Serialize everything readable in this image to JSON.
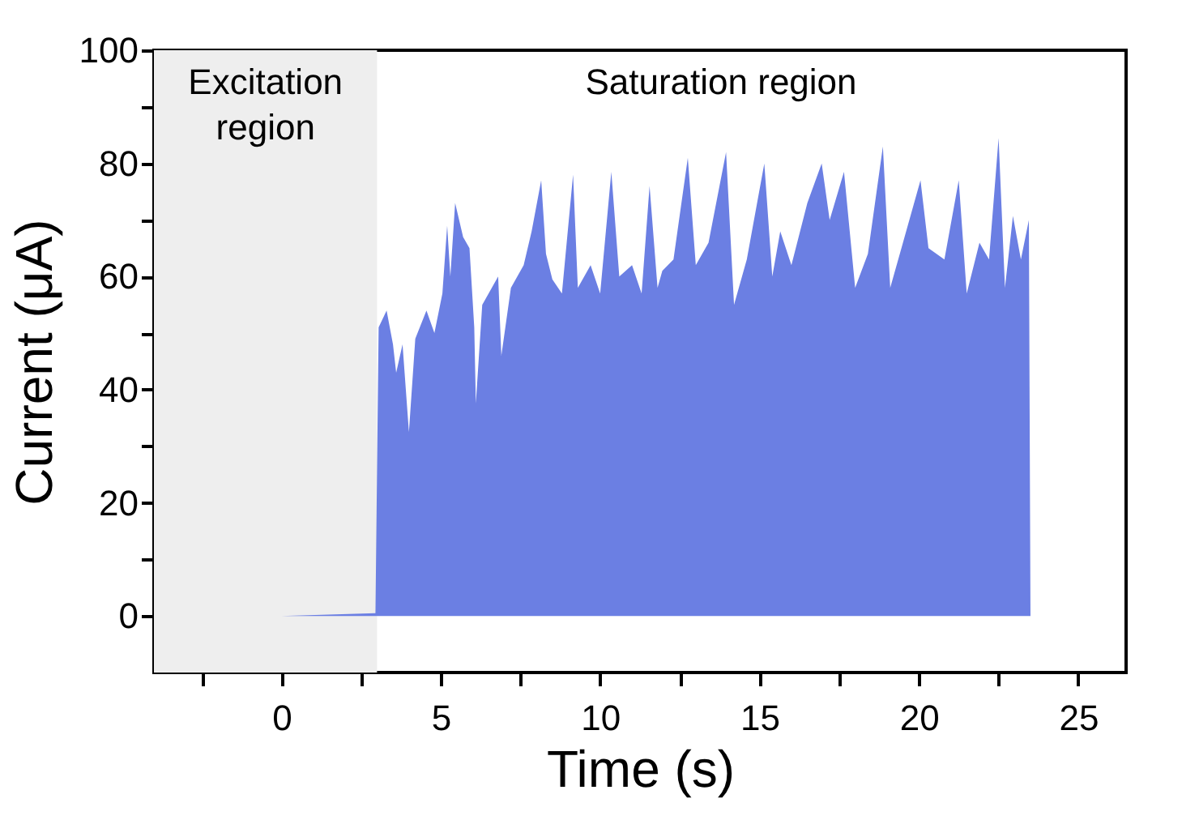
{
  "chart_data": {
    "type": "area",
    "xlabel": "Time (s)",
    "ylabel": "Current (μA)",
    "x": [
      0,
      2.95,
      3.05,
      3.3,
      3.5,
      3.6,
      3.8,
      4.0,
      4.2,
      4.55,
      4.8,
      5.05,
      5.2,
      5.3,
      5.45,
      5.7,
      5.9,
      6.05,
      6.1,
      6.3,
      6.8,
      6.9,
      7.2,
      7.6,
      7.85,
      8.15,
      8.3,
      8.5,
      8.8,
      9.15,
      9.3,
      9.7,
      10.0,
      10.35,
      10.6,
      11.0,
      11.3,
      11.55,
      11.8,
      11.95,
      12.3,
      12.75,
      13.0,
      13.4,
      13.95,
      14.2,
      14.6,
      15.15,
      15.4,
      15.65,
      16.0,
      16.5,
      16.95,
      17.2,
      17.65,
      18.0,
      18.4,
      18.87,
      19.1,
      19.5,
      20.05,
      20.3,
      20.8,
      21.25,
      21.5,
      21.9,
      22.2,
      22.5,
      22.7,
      22.95,
      23.2,
      23.45,
      23.5
    ],
    "series": [
      {
        "color": "#6b7fe3",
        "values": [
          0,
          0.5,
          51,
          54,
          48,
          43,
          48,
          32.5,
          49,
          54,
          50,
          57,
          69,
          60,
          73,
          67,
          65,
          51,
          37.6,
          55,
          60,
          46,
          58,
          62,
          68,
          77,
          64,
          59.5,
          57,
          78,
          58,
          62,
          57,
          78.5,
          60,
          62,
          57,
          76,
          58,
          61,
          63,
          81,
          62,
          66,
          82,
          55,
          63,
          80,
          60,
          68,
          62,
          73,
          80,
          70,
          78.5,
          58,
          64,
          83,
          58,
          66,
          77,
          65,
          63,
          77,
          57,
          66,
          63,
          84.5,
          58,
          70.7,
          63,
          70,
          0
        ]
      }
    ],
    "xlim": [
      -4,
      26.5
    ],
    "xticks": [
      {
        "value": -2.5,
        "label": null
      },
      0,
      {
        "value": 2.5,
        "label": null
      },
      5,
      {
        "value": 7.5,
        "label": null
      },
      10,
      {
        "value": 12.5,
        "label": null
      },
      15,
      {
        "value": 17.5,
        "label": null
      },
      20,
      {
        "value": 22.5,
        "label": null
      },
      25
    ],
    "ylim": [
      -10,
      100
    ],
    "yticks": [
      0,
      {
        "value": 10,
        "label": null
      },
      20,
      {
        "value": 30,
        "label": null
      },
      40,
      {
        "value": 50,
        "label": null
      },
      60,
      {
        "value": 70,
        "label": null
      },
      80,
      {
        "value": 90,
        "label": null
      },
      100
    ],
    "bands": [
      {
        "axis": "x",
        "from": -4,
        "to": 3,
        "label": "Excitation\nregion",
        "color": "#eeeeee"
      }
    ],
    "annotations": [
      "Saturation region"
    ],
    "grid": false
  }
}
